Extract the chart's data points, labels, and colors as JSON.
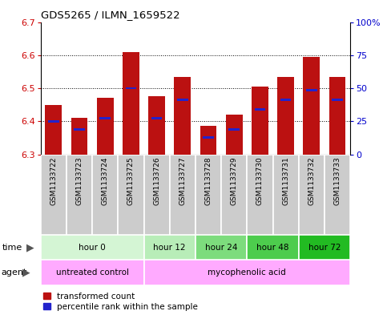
{
  "title": "GDS5265 / ILMN_1659522",
  "samples": [
    "GSM1133722",
    "GSM1133723",
    "GSM1133724",
    "GSM1133725",
    "GSM1133726",
    "GSM1133727",
    "GSM1133728",
    "GSM1133729",
    "GSM1133730",
    "GSM1133731",
    "GSM1133732",
    "GSM1133733"
  ],
  "bar_tops": [
    6.45,
    6.41,
    6.47,
    6.61,
    6.475,
    6.535,
    6.385,
    6.42,
    6.505,
    6.535,
    6.595,
    6.535
  ],
  "percentile_values": [
    6.4,
    6.375,
    6.41,
    6.5,
    6.41,
    6.465,
    6.35,
    6.375,
    6.435,
    6.465,
    6.495,
    6.465
  ],
  "bar_bottom": 6.3,
  "ylim": [
    6.3,
    6.7
  ],
  "yticks_left": [
    6.3,
    6.4,
    6.5,
    6.6,
    6.7
  ],
  "yticks_right": [
    0,
    25,
    50,
    75,
    100
  ],
  "bar_color": "#bb1111",
  "percentile_color": "#2222cc",
  "time_group_colors": [
    "#d4f5d4",
    "#b8edb8",
    "#7ddc7d",
    "#4dcc4d",
    "#22bb22"
  ],
  "time_groups": [
    {
      "label": "hour 0",
      "start": 0,
      "end": 4
    },
    {
      "label": "hour 12",
      "start": 4,
      "end": 6
    },
    {
      "label": "hour 24",
      "start": 6,
      "end": 8
    },
    {
      "label": "hour 48",
      "start": 8,
      "end": 10
    },
    {
      "label": "hour 72",
      "start": 10,
      "end": 12
    }
  ],
  "agent_groups": [
    {
      "label": "untreated control",
      "start": 0,
      "end": 4
    },
    {
      "label": "mycophenolic acid",
      "start": 4,
      "end": 12
    }
  ],
  "agent_color": "#ffaaff",
  "sample_box_color": "#cccccc",
  "legend_red": "transformed count",
  "legend_blue": "percentile rank within the sample"
}
